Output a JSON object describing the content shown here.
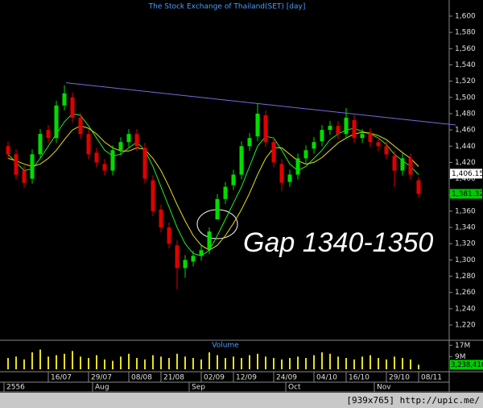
{
  "chart_data": {
    "type": "candlestick",
    "title": "The Stock Exchange of Thailand(SET) [day]",
    "annotation": "Gap 1340-1350",
    "volume_title": "Volume",
    "footer": "[939x765] http://upic.me/",
    "up_color": "#00dd00",
    "down_color": "#e00000",
    "categories": [
      null,
      null,
      null,
      null,
      null,
      "16/07",
      null,
      null,
      null,
      null,
      "29/07",
      null,
      null,
      null,
      null,
      "08/08",
      null,
      null,
      null,
      "21/08",
      null,
      null,
      null,
      null,
      "02/09",
      null,
      null,
      null,
      "12/09",
      null,
      null,
      null,
      null,
      "24/09",
      null,
      null,
      null,
      null,
      "04/10",
      null,
      null,
      null,
      "16/10",
      null,
      null,
      null,
      null,
      "29/10",
      null,
      null,
      null,
      "08/11"
    ],
    "periods": [
      "2556",
      null,
      null,
      null,
      null,
      null,
      null,
      null,
      null,
      null,
      null,
      "Aug",
      null,
      null,
      null,
      null,
      null,
      null,
      null,
      null,
      null,
      null,
      null,
      "Sep",
      null,
      null,
      null,
      null,
      null,
      null,
      null,
      null,
      null,
      null,
      null,
      "Oct",
      null,
      null,
      null,
      null,
      null,
      null,
      null,
      null,
      null,
      null,
      "Nov",
      null,
      null,
      null,
      null,
      null
    ],
    "open": [
      1440,
      1430,
      1410,
      1400,
      1430,
      1460,
      1450,
      1490,
      1500,
      1475,
      1455,
      1432,
      1418,
      1410,
      1435,
      1445,
      1455,
      1438,
      1398,
      1362,
      1340,
      1318,
      1290,
      1298,
      1305,
      1313,
      1350,
      1375,
      1392,
      1405,
      1440,
      1452,
      1478,
      1445,
      1418,
      1396,
      1405,
      1425,
      1437,
      1446,
      1460,
      1465,
      1455,
      1472,
      1450,
      1456,
      1445,
      1440,
      1428,
      1410,
      1425,
      1398
    ],
    "high": [
      1446,
      1436,
      1416,
      1436,
      1461,
      1466,
      1496,
      1515,
      1506,
      1481,
      1461,
      1438,
      1424,
      1441,
      1451,
      1461,
      1461,
      1444,
      1404,
      1368,
      1346,
      1324,
      1306,
      1311,
      1318,
      1340,
      1381,
      1396,
      1411,
      1446,
      1456,
      1493,
      1484,
      1451,
      1424,
      1411,
      1431,
      1441,
      1451,
      1466,
      1471,
      1471,
      1487,
      1478,
      1461,
      1462,
      1451,
      1446,
      1434,
      1431,
      1431,
      1402
    ],
    "low": [
      1424,
      1399,
      1389,
      1394,
      1424,
      1444,
      1444,
      1484,
      1469,
      1449,
      1424,
      1414,
      1404,
      1404,
      1429,
      1439,
      1434,
      1394,
      1354,
      1334,
      1314,
      1264,
      1278,
      1292,
      1299,
      1307,
      1350,
      1369,
      1386,
      1399,
      1434,
      1446,
      1439,
      1414,
      1385,
      1390,
      1399,
      1419,
      1431,
      1440,
      1454,
      1449,
      1449,
      1444,
      1444,
      1439,
      1434,
      1424,
      1390,
      1404,
      1399,
      1377
    ],
    "close": [
      1430,
      1405,
      1395,
      1430,
      1455,
      1450,
      1490,
      1505,
      1475,
      1455,
      1430,
      1420,
      1410,
      1435,
      1445,
      1455,
      1440,
      1400,
      1360,
      1340,
      1320,
      1290,
      1300,
      1305,
      1312,
      1335,
      1375,
      1390,
      1405,
      1440,
      1450,
      1480,
      1445,
      1420,
      1395,
      1405,
      1425,
      1435,
      1445,
      1460,
      1465,
      1455,
      1475,
      1450,
      1455,
      1445,
      1440,
      1430,
      1410,
      1425,
      1405,
      1381.32
    ],
    "series": [
      {
        "color": "#22ee22",
        "values": [
          1430,
          1420,
          1410,
          1412,
          1425,
          1440,
          1455,
          1470,
          1480,
          1478,
          1465,
          1450,
          1435,
          1428,
          1430,
          1438,
          1445,
          1435,
          1415,
          1390,
          1365,
          1340,
          1320,
          1308,
          1305,
          1312,
          1330,
          1350,
          1370,
          1390,
          1415,
          1440,
          1452,
          1450,
          1435,
          1418,
          1410,
          1415,
          1425,
          1435,
          1448,
          1455,
          1460,
          1462,
          1458,
          1455,
          1450,
          1442,
          1430,
          1422,
          1415,
          1405
        ]
      },
      {
        "color": "#e8e020",
        "values": [
          1425,
          1422,
          1418,
          1415,
          1418,
          1425,
          1435,
          1448,
          1460,
          1465,
          1462,
          1455,
          1445,
          1438,
          1434,
          1434,
          1438,
          1436,
          1425,
          1410,
          1390,
          1368,
          1348,
          1330,
          1318,
          1312,
          1318,
          1330,
          1345,
          1362,
          1382,
          1405,
          1425,
          1438,
          1438,
          1430,
          1422,
          1418,
          1420,
          1426,
          1435,
          1444,
          1450,
          1455,
          1457,
          1456,
          1453,
          1448,
          1440,
          1432,
          1425,
          1415
        ]
      }
    ],
    "trendline": {
      "color": "#6f6fe0",
      "values": [
        1518,
        1466
      ]
    },
    "markers": [
      {
        "value": 1406.15,
        "label": "1,406.15"
      },
      {
        "value": 1381.32,
        "label": "1,381.32"
      }
    ],
    "ylim": [
      1220,
      1600
    ],
    "yticks": [
      {
        "value": 1220,
        "label": "1,220"
      },
      {
        "value": 1240,
        "label": "1,240"
      },
      {
        "value": 1260,
        "label": "1,260"
      },
      {
        "value": 1280,
        "label": "1,280"
      },
      {
        "value": 1300,
        "label": "1,300"
      },
      {
        "value": 1320,
        "label": "1,320"
      },
      {
        "value": 1340,
        "label": "1,340"
      },
      {
        "value": 1360,
        "label": "1,360"
      },
      {
        "value": 1380,
        "label": "1,380"
      },
      {
        "value": 1400,
        "label": "1,400"
      },
      {
        "value": 1420,
        "label": "1,420"
      },
      {
        "value": 1440,
        "label": "1,440"
      },
      {
        "value": 1460,
        "label": "1,460"
      },
      {
        "value": 1480,
        "label": "1,480"
      },
      {
        "value": 1500,
        "label": "1,500"
      },
      {
        "value": 1520,
        "label": "1,520"
      },
      {
        "value": 1540,
        "label": "1,540"
      },
      {
        "value": 1560,
        "label": "1,560"
      },
      {
        "value": 1580,
        "label": "1,580"
      },
      {
        "value": 1600,
        "label": "1,600"
      }
    ],
    "volume": [
      8000000,
      9000000,
      7000000,
      12000000,
      14000000,
      9000000,
      10000000,
      11000000,
      13000000,
      9000000,
      8000000,
      10000000,
      7000000,
      6000000,
      9000000,
      11000000,
      8000000,
      7000000,
      10000000,
      9000000,
      8000000,
      11000000,
      9000000,
      8000000,
      7000000,
      12000000,
      10000000,
      8000000,
      9000000,
      8000000,
      10000000,
      11000000,
      9000000,
      8000000,
      7000000,
      8000000,
      9000000,
      8000000,
      10000000,
      12000000,
      11000000,
      9000000,
      8000000,
      7000000,
      9000000,
      10000000,
      8000000,
      7000000,
      9000000,
      8000000,
      7000000,
      3238416
    ],
    "volume_color": "#e8e020",
    "volume_marker": {
      "value": 3238416,
      "label": "3,238,416"
    },
    "vlim": [
      0,
      20000000
    ],
    "vticks": [
      {
        "value": 9000000,
        "label": "9M"
      },
      {
        "value": 17000000,
        "label": "17M"
      }
    ]
  }
}
